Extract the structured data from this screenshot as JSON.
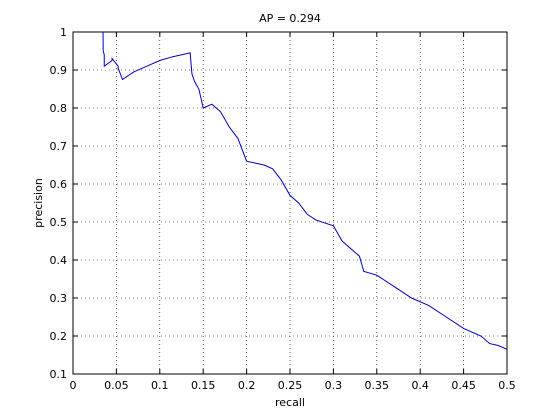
{
  "chart_data": {
    "type": "line",
    "title": "AP = 0.294",
    "x_label": "recall",
    "y_label": "precision",
    "x": [
      0.0346,
      0.0348,
      0.036,
      0.036,
      0.045,
      0.045,
      0.052,
      0.052,
      0.057,
      0.07,
      0.085,
      0.1,
      0.115,
      0.135,
      0.137,
      0.14,
      0.145,
      0.15,
      0.16,
      0.17,
      0.18,
      0.19,
      0.195,
      0.2,
      0.21,
      0.22,
      0.23,
      0.24,
      0.25,
      0.26,
      0.27,
      0.28,
      0.3,
      0.31,
      0.32,
      0.33,
      0.335,
      0.35,
      0.37,
      0.39,
      0.41,
      0.43,
      0.45,
      0.47,
      0.48,
      0.49,
      0.5
    ],
    "values": [
      1,
      0.95,
      0.94,
      0.91,
      0.925,
      0.93,
      0.91,
      0.905,
      0.875,
      0.895,
      0.91,
      0.925,
      0.935,
      0.945,
      0.89,
      0.87,
      0.85,
      0.8,
      0.81,
      0.79,
      0.75,
      0.72,
      0.69,
      0.66,
      0.655,
      0.65,
      0.64,
      0.61,
      0.57,
      0.55,
      0.52,
      0.505,
      0.49,
      0.45,
      0.43,
      0.41,
      0.37,
      0.36,
      0.33,
      0.3,
      0.28,
      0.25,
      0.22,
      0.2,
      0.18,
      0.175,
      0.165
    ],
    "color": "#0000c0",
    "xlim": [
      0,
      0.5
    ],
    "xticks": [
      0,
      0.05,
      0.1,
      0.15,
      0.2,
      0.25,
      0.3,
      0.35,
      0.4,
      0.45,
      0.5
    ],
    "ylim": [
      0.1,
      1
    ],
    "yticks": [
      0.1,
      0.2,
      0.3,
      0.4,
      0.5,
      0.6,
      0.7,
      0.8,
      0.9,
      1
    ],
    "grid": true
  }
}
